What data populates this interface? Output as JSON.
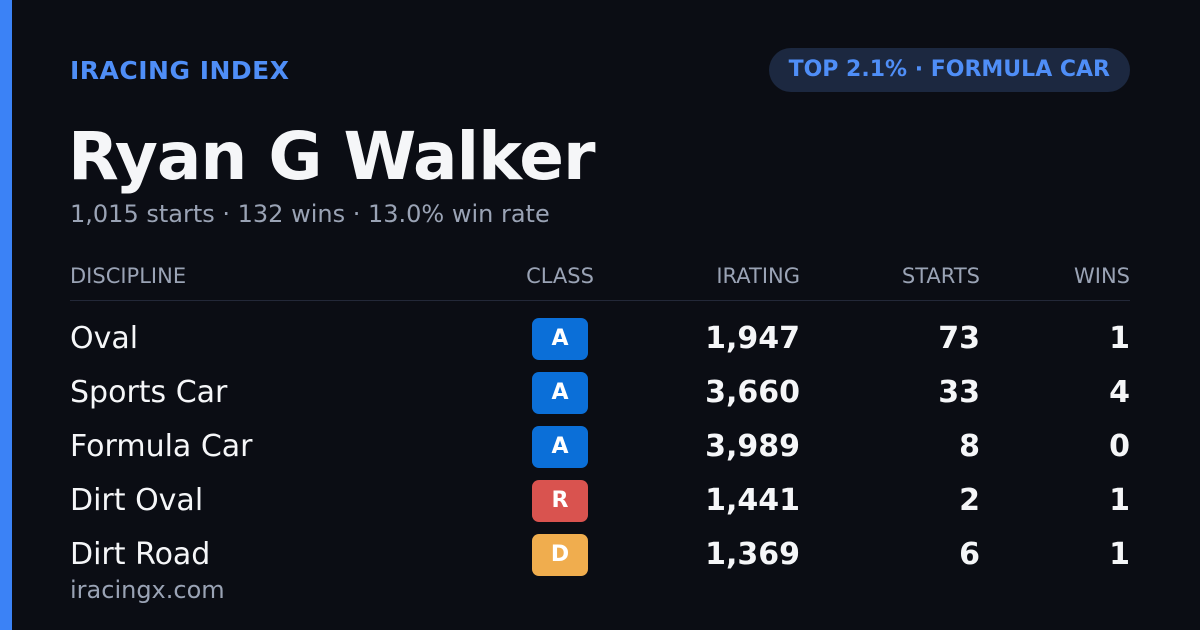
{
  "header": {
    "brand": "IRACING INDEX",
    "badge": "TOP 2.1% · FORMULA CAR"
  },
  "profile": {
    "name": "Ryan G Walker",
    "summary": "1,015 starts · 132 wins · 13.0% win rate"
  },
  "table": {
    "columns": [
      "DISCIPLINE",
      "CLASS",
      "IRATING",
      "STARTS",
      "WINS"
    ],
    "rows": [
      [
        "Oval",
        "A",
        "1,947",
        "73",
        "1"
      ],
      [
        "Sports Car",
        "A",
        "3,660",
        "33",
        "4"
      ],
      [
        "Formula Car",
        "A",
        "3,989",
        "8",
        "0"
      ],
      [
        "Dirt Oval",
        "R",
        "1,441",
        "2",
        "1"
      ],
      [
        "Dirt Road",
        "D",
        "1,369",
        "6",
        "1"
      ]
    ],
    "class_colors": [
      "#0b6fd8",
      "#0b6fd8",
      "#0b6fd8",
      "#d9534f",
      "#f0ad4e"
    ]
  },
  "footer": {
    "site": "iracingx.com"
  }
}
